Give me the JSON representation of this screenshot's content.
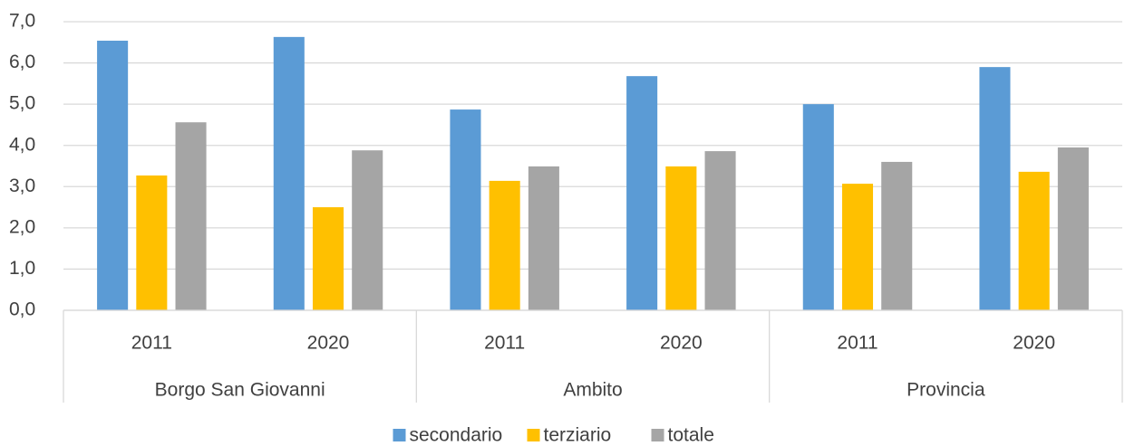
{
  "chart_data": {
    "type": "bar",
    "categories": [
      "2011",
      "2020",
      "2011",
      "2020",
      "2011",
      "2020"
    ],
    "groups": [
      "Borgo San Giovanni",
      "Ambito",
      "Provincia"
    ],
    "series": [
      {
        "name": "secondario",
        "color": "#5b9bd5",
        "values": [
          6.54,
          6.63,
          4.87,
          5.68,
          5.0,
          5.9
        ]
      },
      {
        "name": "terziario",
        "color": "#ffc000",
        "values": [
          3.27,
          2.5,
          3.14,
          3.49,
          3.07,
          3.36
        ]
      },
      {
        "name": "totale",
        "color": "#a5a5a5",
        "values": [
          4.56,
          3.88,
          3.49,
          3.86,
          3.6,
          3.95
        ]
      }
    ],
    "ylim": [
      0,
      7
    ],
    "yticks": [
      {
        "value": 0,
        "label": "0,0"
      },
      {
        "value": 1,
        "label": "1,0"
      },
      {
        "value": 2,
        "label": "2,0"
      },
      {
        "value": 3,
        "label": "3,0"
      },
      {
        "value": 4,
        "label": "4,0"
      },
      {
        "value": 5,
        "label": "5,0"
      },
      {
        "value": 6,
        "label": "6,0"
      },
      {
        "value": 7,
        "label": "7,0"
      }
    ],
    "grid": true,
    "legend": "bottom"
  }
}
